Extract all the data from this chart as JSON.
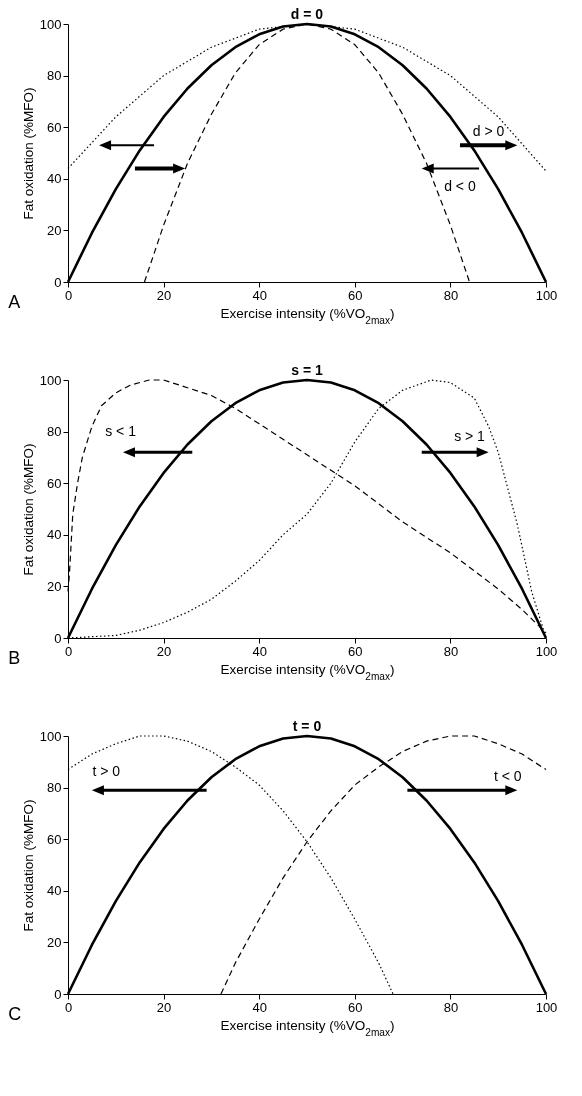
{
  "chart_data": [
    {
      "type": "line",
      "xlabel": "Exercise intensity (%VO$_{2max}$)",
      "ylabel": "Fat oxidation (%MFO)",
      "xlim": [
        0,
        100
      ],
      "ylim": [
        0,
        100
      ],
      "xticks": [
        0,
        20,
        40,
        60,
        80,
        100
      ],
      "yticks": [
        0,
        20,
        40,
        60,
        80,
        100
      ],
      "annotations": [
        "A"
      ],
      "series": [
        {
          "name": "d = 0",
          "color": "#000000",
          "line_style": "solid",
          "x": [
            0,
            5,
            10,
            15,
            20,
            25,
            30,
            35,
            40,
            45,
            50,
            55,
            60,
            65,
            70,
            75,
            80,
            85,
            90,
            95,
            100
          ],
          "values": [
            0,
            19,
            36,
            51,
            64,
            75,
            84,
            91,
            96,
            99,
            100,
            99,
            96,
            91,
            84,
            75,
            64,
            51,
            36,
            19,
            0
          ]
        },
        {
          "name": "d > 0",
          "color": "#000000",
          "line_style": "dotted",
          "x": [
            0,
            10,
            20,
            30,
            40,
            50,
            60,
            70,
            80,
            90,
            100
          ],
          "values": [
            44,
            64,
            80,
            91,
            98,
            100,
            98,
            91,
            80,
            64,
            43
          ]
        },
        {
          "name": "d < 0",
          "color": "#000000",
          "line_style": "dashed",
          "x": [
            16,
            20,
            25,
            30,
            35,
            40,
            45,
            50,
            55,
            60,
            65,
            70,
            75,
            80,
            84
          ],
          "values": [
            0,
            22,
            46,
            65,
            81,
            92,
            98,
            100,
            98,
            92,
            81,
            65,
            46,
            22,
            0
          ]
        }
      ]
    },
    {
      "type": "line",
      "xlabel": "Exercise intensity (%VO$_{2max}$)",
      "ylabel": "Fat oxidation (%MFO)",
      "xlim": [
        0,
        100
      ],
      "ylim": [
        0,
        100
      ],
      "xticks": [
        0,
        20,
        40,
        60,
        80,
        100
      ],
      "yticks": [
        0,
        20,
        40,
        60,
        80,
        100
      ],
      "annotations": [
        "B"
      ],
      "series": [
        {
          "name": "s = 1",
          "color": "#000000",
          "line_style": "solid",
          "x": [
            0,
            5,
            10,
            15,
            20,
            25,
            30,
            35,
            40,
            45,
            50,
            55,
            60,
            65,
            70,
            75,
            80,
            85,
            90,
            95,
            100
          ],
          "values": [
            0,
            19,
            36,
            51,
            64,
            75,
            84,
            91,
            96,
            99,
            100,
            99,
            96,
            91,
            84,
            75,
            64,
            51,
            36,
            19,
            0
          ]
        },
        {
          "name": "s < 1",
          "color": "#000000",
          "line_style": "dashed",
          "x": [
            0,
            0.3,
            1,
            2,
            3,
            5,
            7,
            10,
            13,
            17,
            20,
            25,
            30,
            35,
            40,
            45,
            50,
            55,
            60,
            65,
            70,
            75,
            80,
            85,
            90,
            95,
            100
          ],
          "values": [
            18,
            25,
            48,
            60,
            70,
            82,
            90,
            95,
            98,
            100,
            100,
            97,
            94,
            89,
            83,
            77,
            71,
            65,
            59,
            52,
            45,
            39,
            33,
            26,
            19,
            11,
            2
          ]
        },
        {
          "name": "s > 1",
          "color": "#000000",
          "line_style": "dotted",
          "x": [
            0,
            10,
            15,
            20,
            25,
            30,
            35,
            40,
            45,
            50,
            55,
            60,
            65,
            70,
            76,
            80,
            85,
            88,
            90,
            94,
            97,
            100
          ],
          "values": [
            0,
            1,
            3,
            6,
            10,
            15,
            22,
            30,
            40,
            48,
            60,
            76,
            89,
            96,
            100,
            99,
            93,
            82,
            72,
            44,
            18,
            0
          ]
        }
      ]
    },
    {
      "type": "line",
      "xlabel": "Exercise intensity (%VO$_{2max}$)",
      "ylabel": "Fat oxidation (%MFO)",
      "xlim": [
        0,
        100
      ],
      "ylim": [
        0,
        100
      ],
      "xticks": [
        0,
        20,
        40,
        60,
        80,
        100
      ],
      "yticks": [
        0,
        20,
        40,
        60,
        80,
        100
      ],
      "annotations": [
        "C"
      ],
      "series": [
        {
          "name": "t = 0",
          "color": "#000000",
          "line_style": "solid",
          "x": [
            0,
            5,
            10,
            15,
            20,
            25,
            30,
            35,
            40,
            45,
            50,
            55,
            60,
            65,
            70,
            75,
            80,
            85,
            90,
            95,
            100
          ],
          "values": [
            0,
            19,
            36,
            51,
            64,
            75,
            84,
            91,
            96,
            99,
            100,
            99,
            96,
            91,
            84,
            75,
            64,
            51,
            36,
            19,
            0
          ]
        },
        {
          "name": "t > 0",
          "color": "#000000",
          "line_style": "dotted",
          "x": [
            0,
            5,
            10,
            15,
            20,
            25,
            30,
            35,
            40,
            45,
            50,
            55,
            60,
            65,
            68
          ],
          "values": [
            87,
            93,
            97,
            100,
            100,
            98,
            94,
            88,
            81,
            71,
            59,
            45,
            29,
            12,
            0
          ]
        },
        {
          "name": "t < 0",
          "color": "#000000",
          "line_style": "dashed",
          "x": [
            32,
            35,
            40,
            45,
            50,
            55,
            60,
            65,
            70,
            75,
            80,
            82,
            85,
            90,
            95,
            100
          ],
          "values": [
            0,
            12,
            29,
            45,
            59,
            71,
            81,
            88,
            94,
            98,
            100,
            100,
            100,
            97,
            93,
            87
          ]
        }
      ]
    }
  ]
}
